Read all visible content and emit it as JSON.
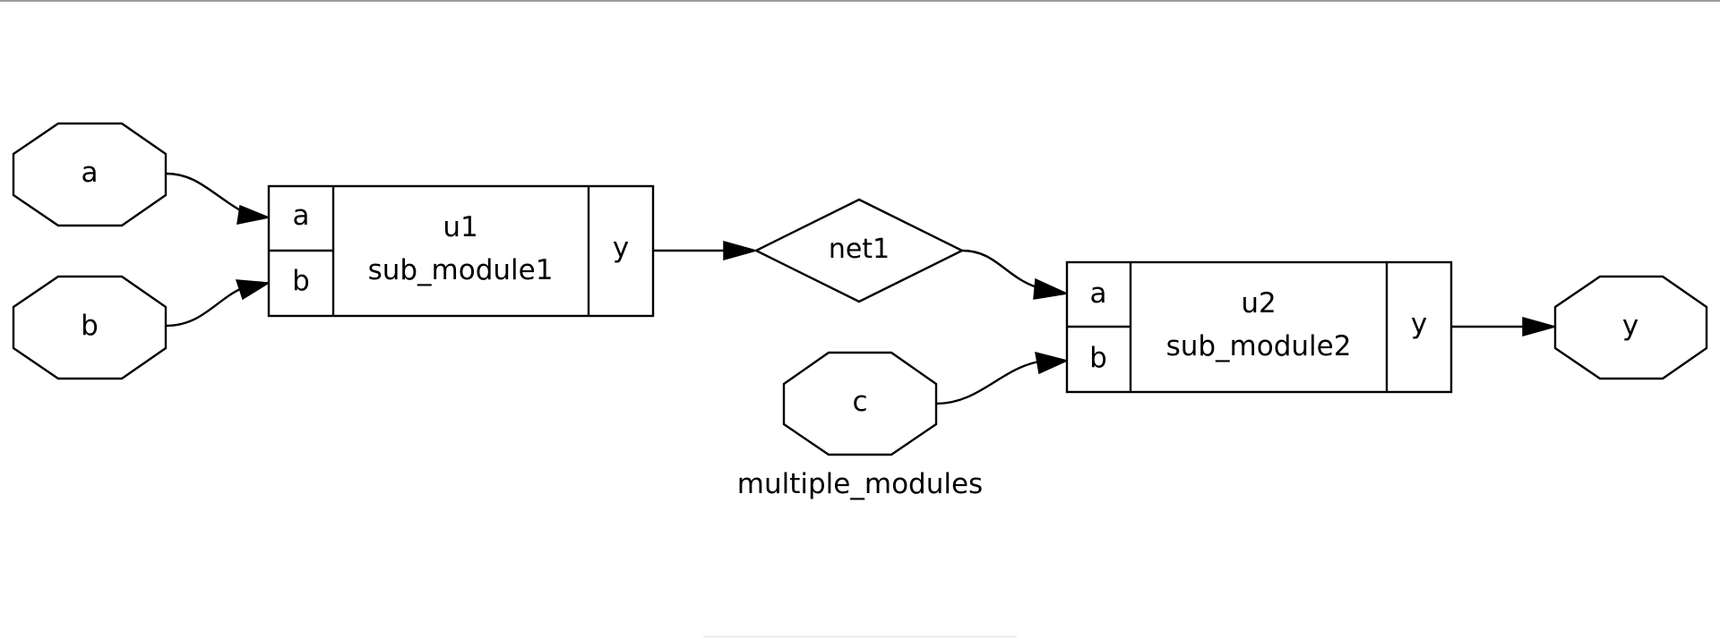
{
  "diagram": {
    "title": "multiple_modules",
    "inputs": [
      {
        "id": "a",
        "label": "a"
      },
      {
        "id": "b",
        "label": "b"
      },
      {
        "id": "c",
        "label": "c"
      }
    ],
    "outputs": [
      {
        "id": "y",
        "label": "y"
      }
    ],
    "nets": [
      {
        "id": "net1",
        "label": "net1"
      }
    ],
    "modules": [
      {
        "id": "u1",
        "instance": "u1",
        "type": "sub_module1",
        "in_ports": [
          "a",
          "b"
        ],
        "out_port": "y"
      },
      {
        "id": "u2",
        "instance": "u2",
        "type": "sub_module2",
        "in_ports": [
          "a",
          "b"
        ],
        "out_port": "y"
      }
    ],
    "edges": [
      {
        "from": "a",
        "to": "u1.a"
      },
      {
        "from": "b",
        "to": "u1.b"
      },
      {
        "from": "u1.y",
        "to": "net1"
      },
      {
        "from": "net1",
        "to": "u2.a"
      },
      {
        "from": "c",
        "to": "u2.b"
      },
      {
        "from": "u2.y",
        "to": "y"
      }
    ]
  }
}
